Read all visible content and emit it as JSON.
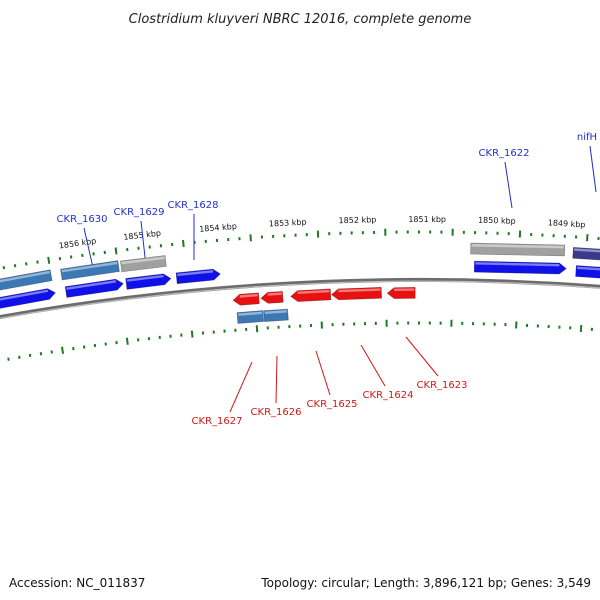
{
  "title": "Clostridium kluyveri NBRC 12016, complete genome",
  "footer": {
    "accession": "Accession: NC_011837",
    "topology": "Topology: circular; Length: 3,896,121 bp; Genes: 3,549"
  },
  "colors": {
    "forward_gene": "#1010e8",
    "reverse_gene": "#e81010",
    "cds_blue": "#3c78b4",
    "pseudo_gray": "#a0a0a0",
    "dark_purple": "#3a3a8c",
    "backbone": "#707070",
    "tick_green": "#1f7a1f",
    "label_blue": "#1f2fcf",
    "label_red": "#d41616"
  },
  "scale_labels": [
    "1856 kbp",
    "1855 kbp",
    "1854 kbp",
    "1853 kbp",
    "1852 kbp",
    "1851 kbp",
    "1850 kbp",
    "1849 kbp"
  ],
  "forward_labels": [
    "CKR_1630",
    "CKR_1629",
    "CKR_1628",
    "CKR_1622",
    "nifH"
  ],
  "reverse_labels": [
    "CKR_1627",
    "CKR_1626",
    "CKR_1625",
    "CKR_1624",
    "CKR_1623"
  ]
}
